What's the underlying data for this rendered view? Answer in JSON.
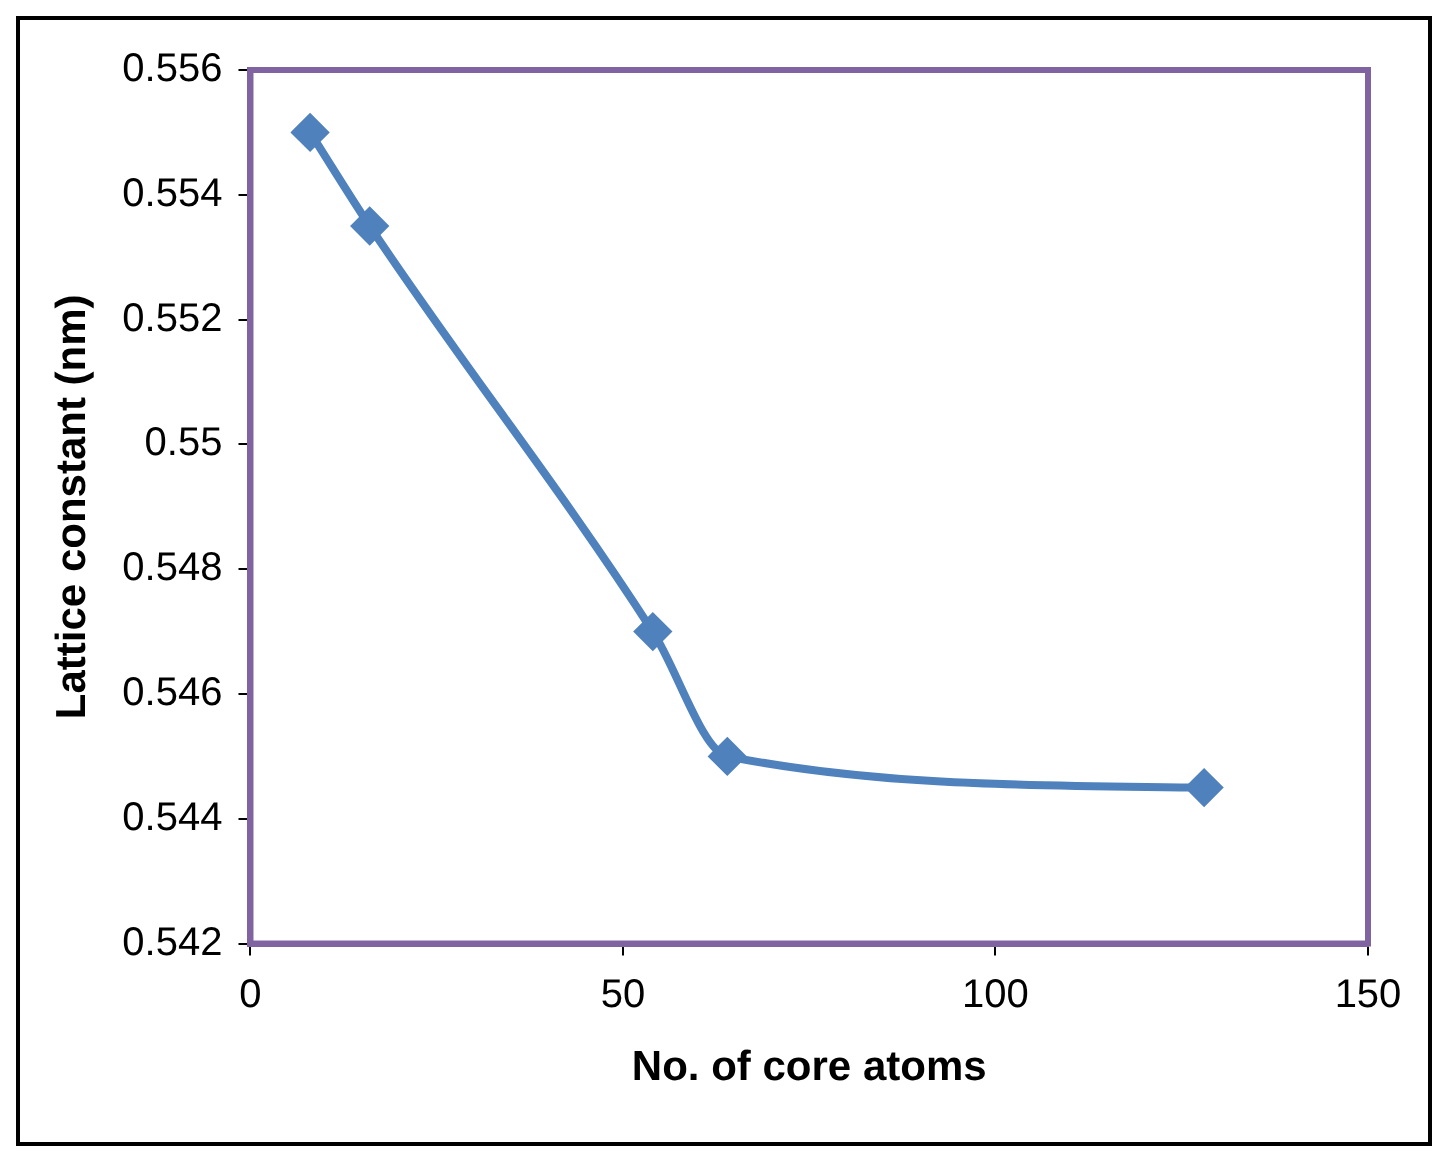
{
  "chart_data": {
    "type": "line",
    "xlabel": "No. of core atoms",
    "ylabel": "Lattice constant (nm)",
    "x": [
      8,
      16,
      54,
      64,
      128
    ],
    "series": [
      {
        "color": "#4f81bd",
        "values": [
          0.555,
          0.5535,
          0.547,
          0.545,
          0.5445
        ]
      }
    ],
    "xlim": [
      0,
      150
    ],
    "xticks": [
      0,
      50,
      100,
      150
    ],
    "ylim": [
      0.542,
      0.556
    ],
    "yticks": [
      0.542,
      0.544,
      0.546,
      0.548,
      0.55,
      0.552,
      0.554,
      0.556
    ],
    "grid": false,
    "legend": false,
    "marker": "diamond",
    "line_style": "solid"
  }
}
